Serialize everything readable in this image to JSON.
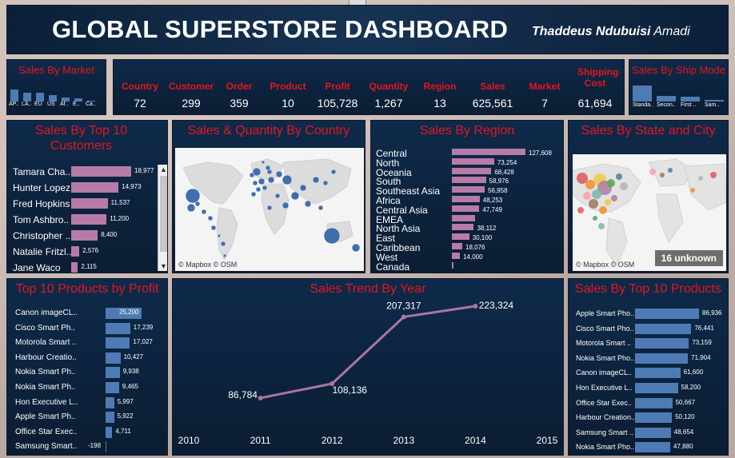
{
  "header": {
    "title": "GLOBAL SUPERSTORE DASHBOARD",
    "author_first": "Thaddeus Ndubuisi",
    "author_last": "Amadi"
  },
  "sales_by_market": {
    "title": "Sales By Market",
    "labels": [
      "AP..",
      "LA..",
      "EU",
      "US",
      "Af..",
      "E..",
      "Ca.."
    ],
    "values": [
      0.85,
      0.62,
      0.6,
      0.45,
      0.3,
      0.2,
      0.05
    ]
  },
  "kpis": [
    {
      "label": "Country",
      "value": "72"
    },
    {
      "label": "Customer",
      "value": "299"
    },
    {
      "label": "Order",
      "value": "359"
    },
    {
      "label": "Product",
      "value": "10"
    },
    {
      "label": "Profit",
      "value": "105,728"
    },
    {
      "label": "Quantity",
      "value": "1,267"
    },
    {
      "label": "Region",
      "value": "13"
    },
    {
      "label": "Sales",
      "value": "625,561"
    },
    {
      "label": "Market",
      "value": "7"
    },
    {
      "label": "Shipping Cost",
      "value": "61,694"
    }
  ],
  "sales_by_ship_mode": {
    "title": "Sales By Ship Mode",
    "labels": [
      "Standa..",
      "Secon..",
      "First ..",
      "Sam.."
    ],
    "values": [
      1.0,
      0.35,
      0.3,
      0.1
    ]
  },
  "top10_customers": {
    "title": "Sales By Top 10 Customers",
    "items": [
      {
        "name": "Tamara Cha..",
        "value": 18977,
        "label": "18,977"
      },
      {
        "name": "Hunter Lopez",
        "value": 14973,
        "label": "14,973"
      },
      {
        "name": "Fred Hopkins",
        "value": 11537,
        "label": "11,537"
      },
      {
        "name": "Tom Ashbro..",
        "value": 11200,
        "label": "11,200"
      },
      {
        "name": "Christopher ..",
        "value": 8400,
        "label": "8,400"
      },
      {
        "name": "Natalie Fritzl..",
        "value": 2576,
        "label": "2,576"
      },
      {
        "name": "Jane Waco",
        "value": 2115,
        "label": "2,115"
      }
    ]
  },
  "map_country": {
    "title": "Sales & Quantity By Country",
    "attribution": "© Mapbox © OSM"
  },
  "sales_by_region": {
    "title": "Sales By Region",
    "items": [
      {
        "name": "Central",
        "value": 127608,
        "label": "127,608"
      },
      {
        "name": "North",
        "value": 73254,
        "label": "73,254"
      },
      {
        "name": "Oceania",
        "value": 68428,
        "label": "68,428"
      },
      {
        "name": "South",
        "value": 58976,
        "label": "58,976"
      },
      {
        "name": "Southeast Asia",
        "value": 56958,
        "label": "56,958"
      },
      {
        "name": "Africa",
        "value": 48253,
        "label": "48,253"
      },
      {
        "name": "Central Asia",
        "value": 47749,
        "label": "47,749"
      },
      {
        "name": "EMEA",
        "value": 40000,
        "label": ""
      },
      {
        "name": "North Asia",
        "value": 38112,
        "label": "38,112"
      },
      {
        "name": "East",
        "value": 30100,
        "label": "30,100"
      },
      {
        "name": "Caribbean",
        "value": 18076,
        "label": "18,076"
      },
      {
        "name": "West",
        "value": 14000,
        "label": "14,000"
      },
      {
        "name": "Canada",
        "value": 1500,
        "label": ""
      }
    ]
  },
  "map_state": {
    "title": "Sales By State and City",
    "attribution": "© Mapbox © OSM",
    "unknown": "16 unknown"
  },
  "top10_products_profit": {
    "title": "Top 10 Products by Profit",
    "items": [
      {
        "name": "Canon imageCL..",
        "value": 25200,
        "label": "25,200"
      },
      {
        "name": "Cisco Smart Ph..",
        "value": 17239,
        "label": "17,239"
      },
      {
        "name": "Motorola Smart ..",
        "value": 17027,
        "label": "17,027"
      },
      {
        "name": "Harbour Creatio..",
        "value": 10427,
        "label": "10,427"
      },
      {
        "name": "Nokia Smart Ph..",
        "value": 9938,
        "label": "9,938"
      },
      {
        "name": "Nokia Smart Ph..",
        "value": 9465,
        "label": "9,465"
      },
      {
        "name": "Hon Executive L..",
        "value": 5997,
        "label": "5,997"
      },
      {
        "name": "Apple Smart Ph..",
        "value": 5922,
        "label": "5,922"
      },
      {
        "name": "Office Star Exec..",
        "value": 4711,
        "label": "4,711"
      },
      {
        "name": "Samsung Smart..",
        "value": -198,
        "label": "-198"
      }
    ]
  },
  "chart_data": {
    "type": "line",
    "title": "Sales Trend By Year",
    "x_ticks": [
      "2010",
      "2011",
      "2012",
      "2013",
      "2014",
      "2015"
    ],
    "x": [
      2011,
      2012,
      2013,
      2014
    ],
    "series": [
      {
        "values": [
          86784,
          108136,
          207317,
          223324
        ]
      }
    ],
    "data_labels": [
      "86,784",
      "108,136",
      "207,317",
      "223,324"
    ],
    "xlim": [
      2010,
      2015
    ],
    "ylim": [
      0,
      240000
    ],
    "grid": false,
    "line_color": "#a9779e"
  },
  "top10_products": {
    "title": "Sales By Top 10 Products",
    "items": [
      {
        "name": "Apple Smart Pho..",
        "value": 86936,
        "label": "86,936"
      },
      {
        "name": "Cisco Smart Pho..",
        "value": 76441,
        "label": "76,441"
      },
      {
        "name": "Motorola Smart ..",
        "value": 73159,
        "label": "73,159"
      },
      {
        "name": "Nokia Smart Pho..",
        "value": 71904,
        "label": "71,904"
      },
      {
        "name": "Canon imageCL..",
        "value": 61600,
        "label": "61,600"
      },
      {
        "name": "Hon Executive L..",
        "value": 58200,
        "label": "58,200"
      },
      {
        "name": "Office Star Exec..",
        "value": 50667,
        "label": "50,667"
      },
      {
        "name": "Harbour Creation..",
        "value": 50120,
        "label": "50,120"
      },
      {
        "name": "Samsung Smart ..",
        "value": 48654,
        "label": "48,654"
      },
      {
        "name": "Nokia Smart Pho..",
        "value": 47880,
        "label": "47,880"
      }
    ]
  },
  "colors": {
    "title_red": "#e3161f",
    "pink_bar": "#b77ba7",
    "blue_bar": "#4f7bb5",
    "map_dot": "#3f6fae"
  }
}
